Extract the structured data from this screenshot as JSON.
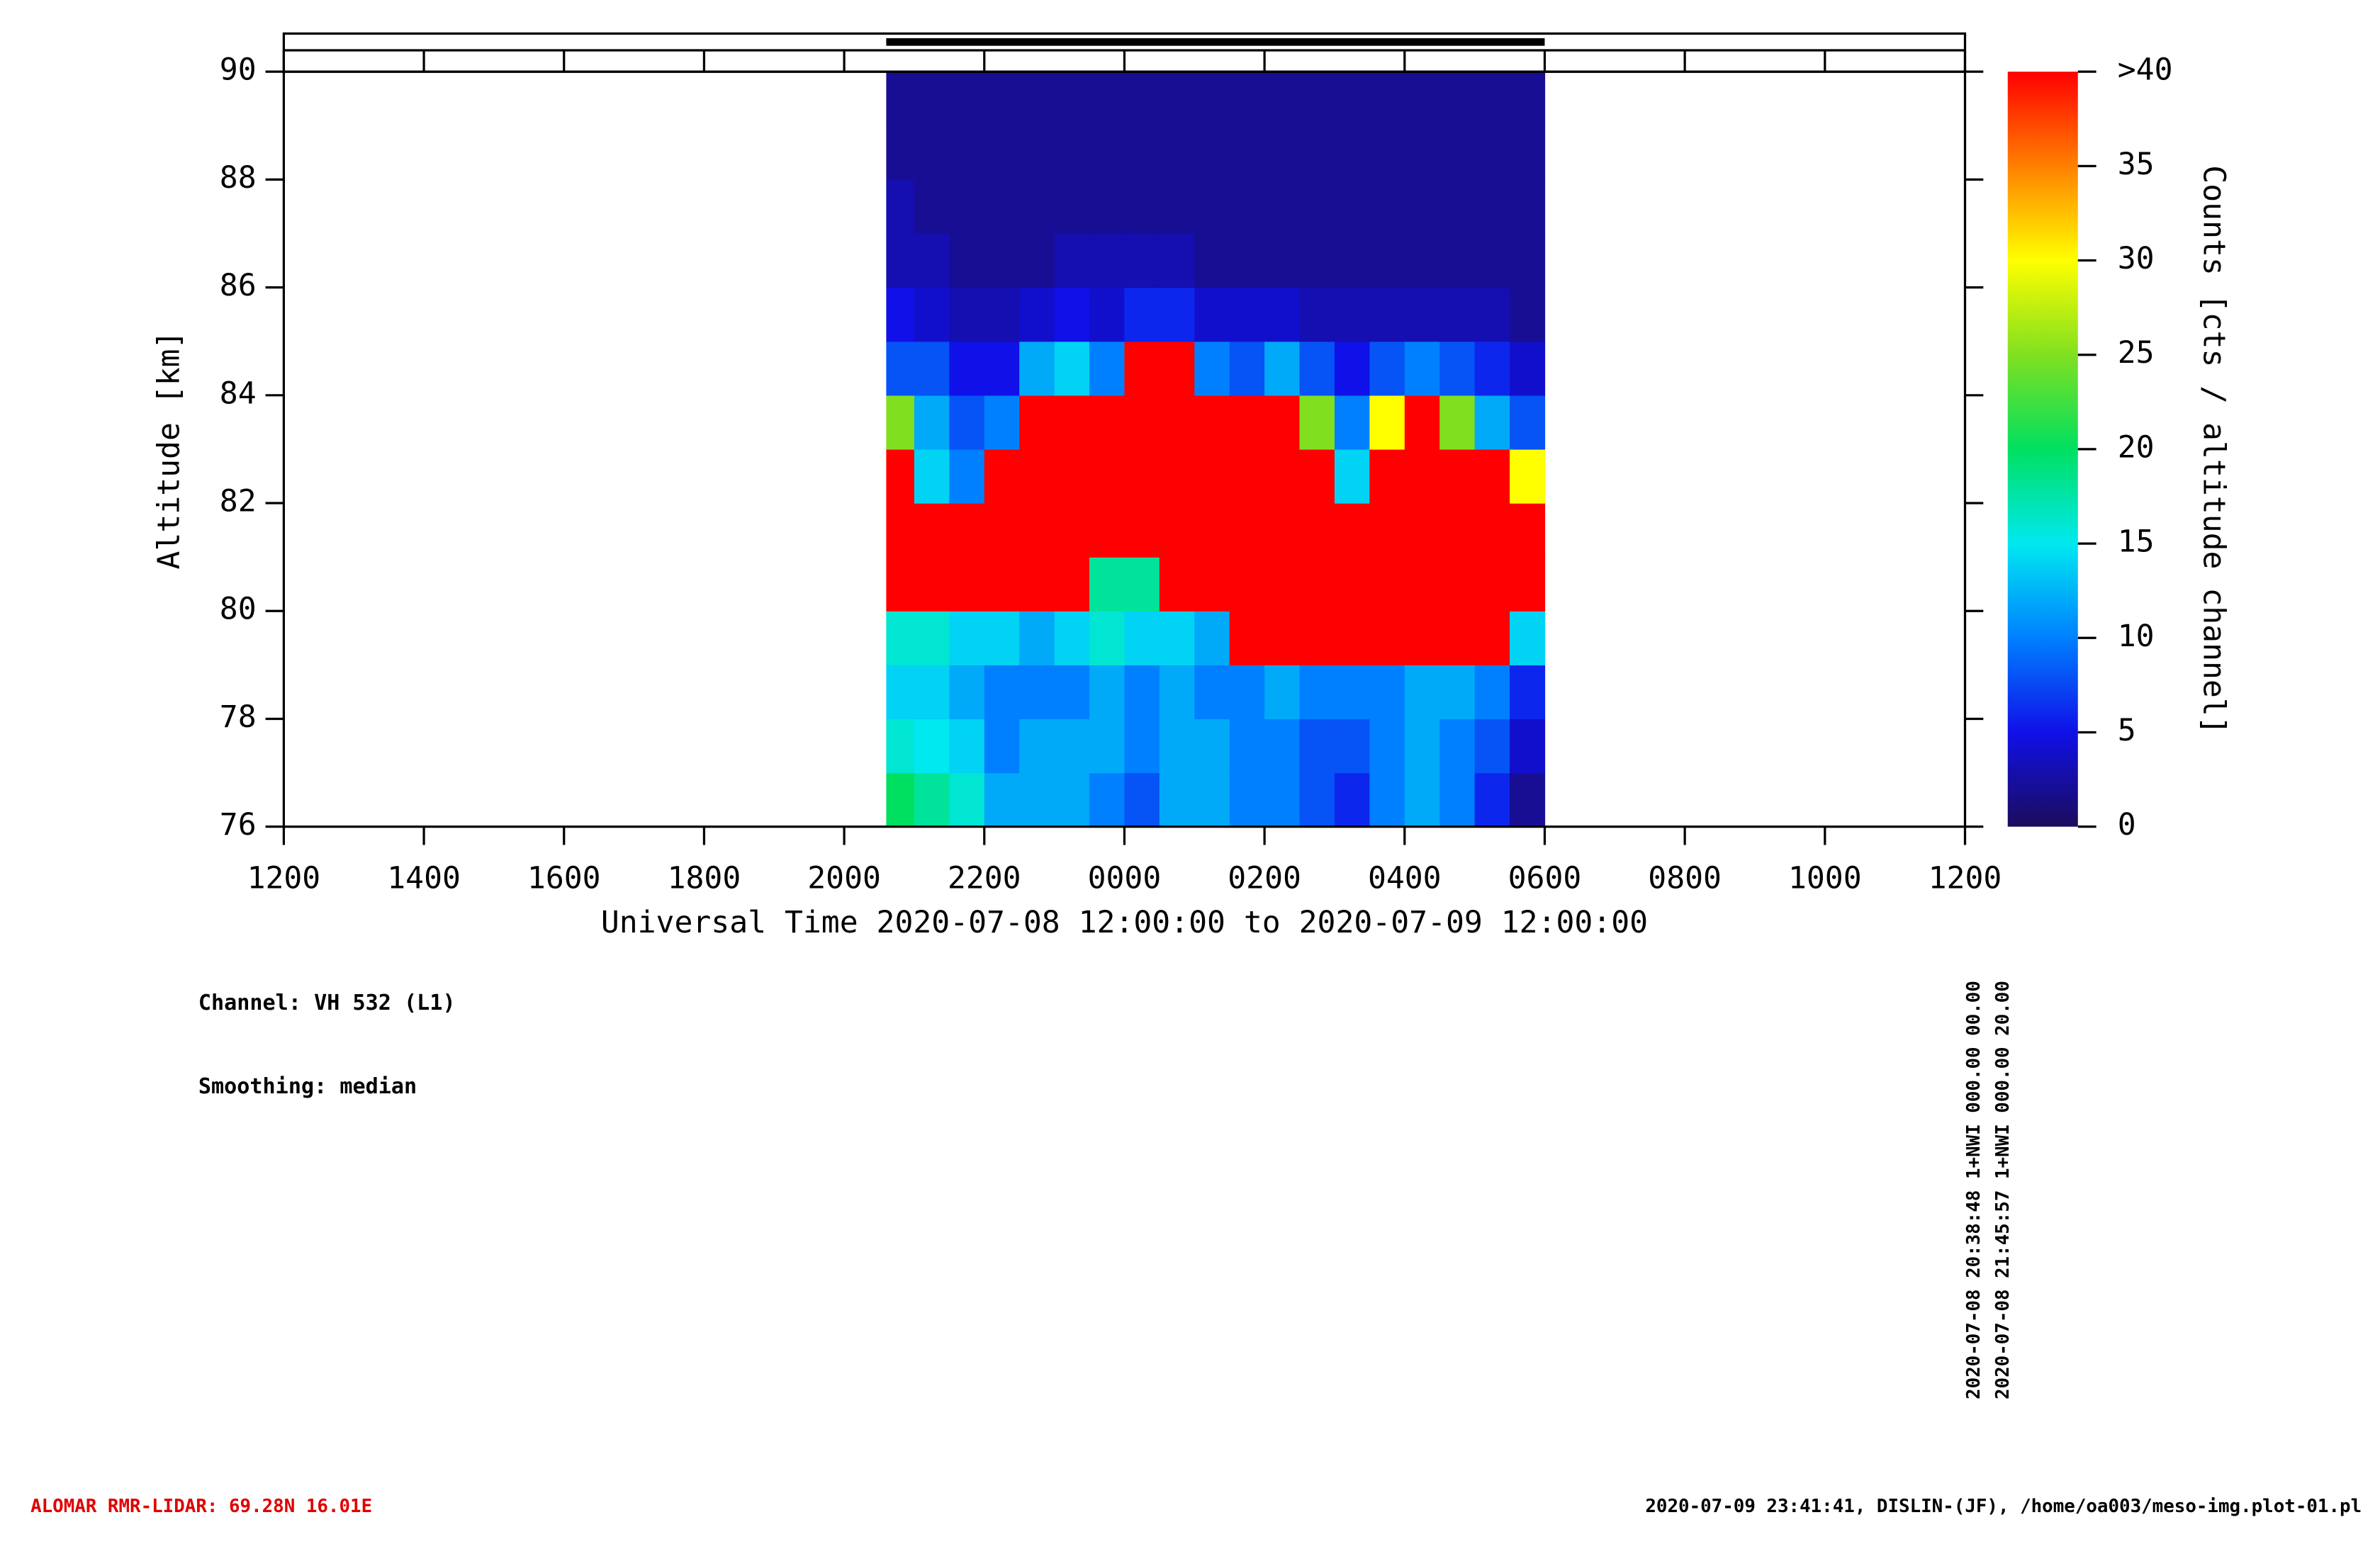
{
  "chart_data": {
    "type": "heatmap",
    "ylabel": "Altitude [km]",
    "xlabel": "Universal Time 2020-07-08 12:00:00 to 2020-07-09 12:00:00",
    "zlabel": "Counts [cts / altitude channel]",
    "x": [
      8.6,
      9,
      9.5,
      10,
      10.5,
      11,
      11.5,
      12,
      12.5,
      13,
      13.5,
      14,
      14.5,
      15,
      15.5,
      16,
      16.5,
      17,
      17.5,
      18
    ],
    "y": [
      76,
      77,
      78,
      79,
      80,
      81,
      82,
      83,
      84,
      85,
      86,
      87,
      88,
      89,
      90
    ],
    "z": [
      [
        20,
        16,
        14,
        16,
        40,
        40,
        40,
        25,
        8,
        5,
        3,
        3,
        2,
        2
      ],
      [
        18,
        15,
        14,
        16,
        40,
        40,
        14,
        12,
        8,
        4,
        3,
        2,
        2,
        2
      ],
      [
        16,
        14,
        12,
        14,
        40,
        40,
        10,
        8,
        5,
        3,
        2,
        2,
        2,
        2
      ],
      [
        12,
        10,
        10,
        14,
        40,
        40,
        40,
        10,
        5,
        3,
        2,
        2,
        2,
        2
      ],
      [
        12,
        12,
        10,
        12,
        40,
        40,
        40,
        40,
        12,
        4,
        2,
        2,
        2,
        2
      ],
      [
        12,
        12,
        10,
        14,
        40,
        40,
        40,
        40,
        14,
        5,
        3,
        2,
        2,
        2
      ],
      [
        10,
        12,
        12,
        16,
        18,
        40,
        40,
        40,
        10,
        4,
        3,
        2,
        2,
        2
      ],
      [
        8,
        10,
        10,
        14,
        18,
        40,
        40,
        40,
        40,
        6,
        3,
        2,
        2,
        2
      ],
      [
        12,
        12,
        12,
        14,
        40,
        40,
        40,
        40,
        40,
        6,
        3,
        2,
        2,
        2
      ],
      [
        12,
        12,
        10,
        12,
        40,
        40,
        40,
        40,
        10,
        4,
        2,
        2,
        2,
        2
      ],
      [
        10,
        10,
        10,
        40,
        40,
        40,
        40,
        40,
        8,
        4,
        2,
        2,
        2,
        2
      ],
      [
        10,
        10,
        12,
        40,
        40,
        40,
        40,
        40,
        12,
        4,
        2,
        2,
        2,
        2
      ],
      [
        8,
        8,
        10,
        40,
        40,
        40,
        40,
        25,
        8,
        3,
        2,
        2,
        2,
        2
      ],
      [
        6,
        8,
        10,
        40,
        40,
        40,
        14,
        10,
        5,
        3,
        2,
        2,
        2,
        2
      ],
      [
        10,
        10,
        10,
        40,
        40,
        40,
        40,
        30,
        8,
        3,
        2,
        2,
        2,
        2
      ],
      [
        12,
        12,
        12,
        40,
        40,
        40,
        40,
        40,
        10,
        3,
        2,
        2,
        2,
        2
      ],
      [
        10,
        10,
        12,
        40,
        40,
        40,
        40,
        25,
        8,
        3,
        2,
        2,
        2,
        2
      ],
      [
        6,
        8,
        10,
        40,
        40,
        40,
        40,
        12,
        6,
        3,
        2,
        2,
        2,
        2
      ],
      [
        2,
        4,
        6,
        14,
        40,
        40,
        30,
        8,
        4,
        2,
        2,
        2,
        2,
        2
      ]
    ],
    "xlim": [
      0,
      24
    ],
    "xticks": [
      {
        "value": 0,
        "label": "1200"
      },
      {
        "value": 2,
        "label": "1400"
      },
      {
        "value": 4,
        "label": "1600"
      },
      {
        "value": 6,
        "label": "1800"
      },
      {
        "value": 8,
        "label": "2000"
      },
      {
        "value": 10,
        "label": "2200"
      },
      {
        "value": 12,
        "label": "0000"
      },
      {
        "value": 14,
        "label": "0200"
      },
      {
        "value": 16,
        "label": "0400"
      },
      {
        "value": 18,
        "label": "0600"
      },
      {
        "value": 20,
        "label": "0800"
      },
      {
        "value": 22,
        "label": "1000"
      },
      {
        "value": 24,
        "label": "1200"
      }
    ],
    "ylim": [
      76,
      90
    ],
    "yticks": [
      76,
      78,
      80,
      82,
      84,
      86,
      88,
      90
    ],
    "zlim": [
      0,
      40
    ],
    "zticks": [
      0,
      5,
      10,
      15,
      20,
      25,
      30,
      35,
      {
        "value": 40,
        "label": ">40"
      }
    ],
    "colormap": [
      "#1c0c5c",
      "#1010e8",
      "#0080ff",
      "#00e8f0",
      "#00e060",
      "#80e020",
      "#ffff00",
      "#ff8000",
      "#ff0000"
    ],
    "annotations": [
      "Channel: VH 532 (L1)",
      "Smoothing: median"
    ],
    "scan_info": [
      "2020-07-08 20:38:48 1+NWI 000.00 00.00",
      "2020-07-08 21:45:57 1+NWI 000.00 20.00"
    ],
    "footer_left": "ALOMAR RMR-LIDAR: 69.28N 16.01E",
    "footer_right": "2020-07-09 23:41:41, DISLIN-(JF), /home/oa003/meso-img.plot-01.pl"
  }
}
